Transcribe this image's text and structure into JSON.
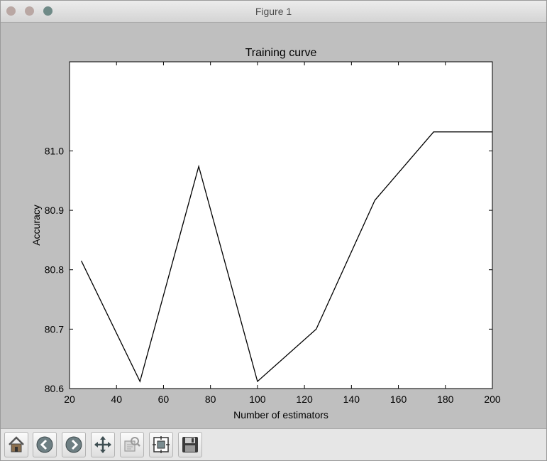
{
  "window": {
    "title": "Figure 1"
  },
  "toolbar": {
    "buttons": [
      {
        "name": "home-button",
        "icon": "home-icon"
      },
      {
        "name": "back-button",
        "icon": "back-arrow-icon"
      },
      {
        "name": "forward-button",
        "icon": "forward-arrow-icon"
      },
      {
        "name": "pan-button",
        "icon": "move-arrows-icon"
      },
      {
        "name": "zoom-button",
        "icon": "zoom-rect-icon"
      },
      {
        "name": "subplots-button",
        "icon": "subplots-config-icon"
      },
      {
        "name": "save-button",
        "icon": "floppy-disk-icon"
      }
    ]
  },
  "chart_data": {
    "type": "line",
    "title": "Training curve",
    "xlabel": "Number of estimators",
    "ylabel": "Accuracy",
    "x": [
      25,
      50,
      75,
      100,
      125,
      150,
      175,
      200
    ],
    "series": [
      {
        "values": [
          80.815,
          80.612,
          80.974,
          80.612,
          80.7,
          80.917,
          81.032,
          81.032
        ],
        "color": "#000000"
      }
    ],
    "xlim": [
      20,
      200
    ],
    "ylim": [
      80.6,
      81.15
    ],
    "xticks": [
      "20",
      "40",
      "60",
      "80",
      "100",
      "120",
      "140",
      "160",
      "180",
      "200"
    ],
    "yticks": [
      "80.6",
      "80.7",
      "80.8",
      "80.9",
      "81.0"
    ],
    "grid": false
  }
}
